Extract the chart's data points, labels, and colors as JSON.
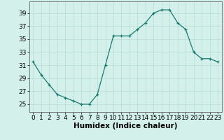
{
  "x": [
    0,
    1,
    2,
    3,
    4,
    5,
    6,
    7,
    8,
    9,
    10,
    11,
    12,
    13,
    14,
    15,
    16,
    17,
    18,
    19,
    20,
    21,
    22,
    23
  ],
  "y": [
    31.5,
    29.5,
    28.0,
    26.5,
    26.0,
    25.5,
    25.0,
    25.0,
    26.5,
    31.0,
    35.5,
    35.5,
    35.5,
    36.5,
    37.5,
    39.0,
    39.5,
    39.5,
    37.5,
    36.5,
    33.0,
    32.0,
    32.0,
    31.5
  ],
  "xlabel": "Humidex (Indice chaleur)",
  "yticks": [
    25,
    27,
    29,
    31,
    33,
    35,
    37,
    39
  ],
  "xticks": [
    0,
    1,
    2,
    3,
    4,
    5,
    6,
    7,
    8,
    9,
    10,
    11,
    12,
    13,
    14,
    15,
    16,
    17,
    18,
    19,
    20,
    21,
    22,
    23
  ],
  "ylim": [
    23.8,
    40.8
  ],
  "xlim": [
    -0.5,
    23.5
  ],
  "line_color": "#1a7a6e",
  "marker_color": "#1a7a6e",
  "bg_color": "#d4f0eb",
  "grid_color": "#b8ddd9",
  "tick_fontsize": 6.5,
  "xlabel_fontsize": 7.5
}
